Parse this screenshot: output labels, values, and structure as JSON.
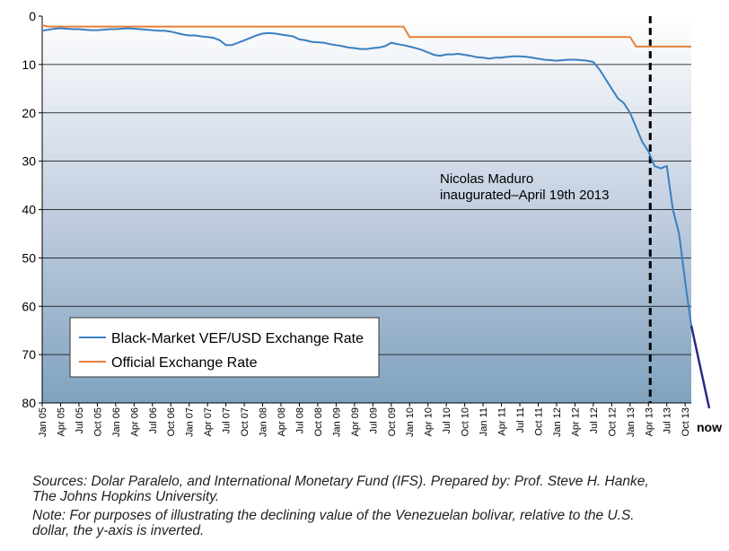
{
  "chart_data": {
    "type": "line",
    "y_inverted": true,
    "ylim": [
      0,
      80
    ],
    "yticks": [
      0,
      10,
      20,
      30,
      40,
      50,
      60,
      70,
      80
    ],
    "grid": true,
    "legend": "lower left",
    "categories": [
      "Jan 05",
      null,
      null,
      "Apr 05",
      null,
      null,
      "Jul 05",
      null,
      null,
      "Oct 05",
      null,
      null,
      "Jan 06",
      null,
      null,
      "Apr 06",
      null,
      null,
      "Jul 06",
      null,
      null,
      "Oct 06",
      null,
      null,
      "Jan 07",
      null,
      null,
      "Apr 07",
      null,
      null,
      "Jul 07",
      null,
      null,
      "Oct 07",
      null,
      null,
      "Jan 08",
      null,
      null,
      "Apr 08",
      null,
      null,
      "Jul 08",
      null,
      null,
      "Oct 08",
      null,
      null,
      "Jan 09",
      null,
      null,
      "Apr 09",
      null,
      null,
      "Jul 09",
      null,
      null,
      "Oct 09",
      null,
      null,
      "Jan 10",
      null,
      null,
      "Apr 10",
      null,
      null,
      "Jul 10",
      null,
      null,
      "Oct 10",
      null,
      null,
      "Jan 11",
      null,
      null,
      "Apr 11",
      null,
      null,
      "Jul 11",
      null,
      null,
      "Oct 11",
      null,
      null,
      "Jan 12",
      null,
      null,
      "Apr 12",
      null,
      null,
      "Jul 12",
      null,
      null,
      "Oct 12",
      null,
      null,
      "Jan 13",
      null,
      null,
      "Apr 13",
      null,
      null,
      "Jul 13",
      null,
      null,
      "Oct 13",
      null
    ],
    "series": [
      {
        "name": "Black-Market VEF/USD Exchange Rate",
        "color": "#3a7fc1",
        "values": [
          3.0,
          2.8,
          2.6,
          2.5,
          2.6,
          2.7,
          2.7,
          2.8,
          2.9,
          2.9,
          2.8,
          2.7,
          2.7,
          2.6,
          2.5,
          2.6,
          2.7,
          2.8,
          2.9,
          3.0,
          3.0,
          3.2,
          3.5,
          3.8,
          4.0,
          4.0,
          4.2,
          4.3,
          4.5,
          5.0,
          6.0,
          6.0,
          5.5,
          5.0,
          4.5,
          4.0,
          3.6,
          3.5,
          3.6,
          3.8,
          4.0,
          4.2,
          4.8,
          5.0,
          5.3,
          5.4,
          5.5,
          5.8,
          6.0,
          6.2,
          6.5,
          6.6,
          6.8,
          6.8,
          6.6,
          6.5,
          6.2,
          5.5,
          5.8,
          6.0,
          6.3,
          6.6,
          7.0,
          7.5,
          8.0,
          8.2,
          7.9,
          7.9,
          7.8,
          8.0,
          8.2,
          8.5,
          8.6,
          8.8,
          8.6,
          8.6,
          8.4,
          8.3,
          8.3,
          8.4,
          8.6,
          8.8,
          9.0,
          9.1,
          9.2,
          9.1,
          9.0,
          9.0,
          9.1,
          9.2,
          9.5,
          11,
          13,
          15,
          17,
          18,
          20,
          23,
          26,
          28,
          31,
          31.5,
          31,
          40,
          45,
          55,
          64
        ]
      },
      {
        "name": "Official Exchange Rate",
        "color": "#e8803a",
        "values": [
          1.9,
          2.15,
          2.15,
          2.15,
          2.15,
          2.15,
          2.15,
          2.15,
          2.15,
          2.15,
          2.15,
          2.15,
          2.15,
          2.15,
          2.15,
          2.15,
          2.15,
          2.15,
          2.15,
          2.15,
          2.15,
          2.15,
          2.15,
          2.15,
          2.15,
          2.15,
          2.15,
          2.15,
          2.15,
          2.15,
          2.15,
          2.15,
          2.15,
          2.15,
          2.15,
          2.15,
          2.15,
          2.15,
          2.15,
          2.15,
          2.15,
          2.15,
          2.15,
          2.15,
          2.15,
          2.15,
          2.15,
          2.15,
          2.15,
          2.15,
          2.15,
          2.15,
          2.15,
          2.15,
          2.15,
          2.15,
          2.15,
          2.15,
          2.15,
          2.15,
          4.3,
          4.3,
          4.3,
          4.3,
          4.3,
          4.3,
          4.3,
          4.3,
          4.3,
          4.3,
          4.3,
          4.3,
          4.3,
          4.3,
          4.3,
          4.3,
          4.3,
          4.3,
          4.3,
          4.3,
          4.3,
          4.3,
          4.3,
          4.3,
          4.3,
          4.3,
          4.3,
          4.3,
          4.3,
          4.3,
          4.3,
          4.3,
          4.3,
          4.3,
          4.3,
          4.3,
          4.3,
          6.3,
          6.3,
          6.3,
          6.3,
          6.3,
          6.3,
          6.3,
          6.3,
          6.3,
          6.3
        ]
      }
    ],
    "annotation": {
      "text": [
        "Nicolas Maduro",
        "inaugurated–April 19th 2013"
      ],
      "category": "Apr 13"
    },
    "end_label": "now",
    "source": [
      "Sources: Dolar Paralelo, and International Monetary Fund (IFS). Prepared by: Prof. Steve H. Hanke,",
      "The Johns Hopkins University."
    ],
    "note": [
      "Note: For purposes of illustrating the declining value of the Venezuelan bolivar, relative to the U.S.",
      "dollar, the y-axis is inverted."
    ]
  }
}
